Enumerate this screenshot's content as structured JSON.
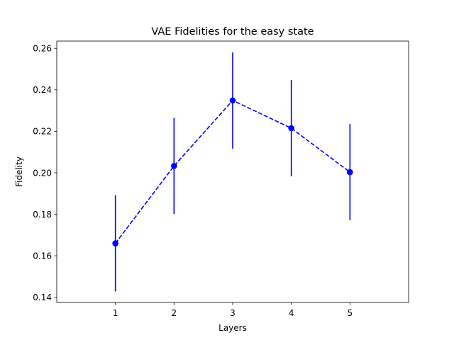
{
  "chart_data": {
    "type": "line",
    "title": "VAE Fidelities for the easy state",
    "xlabel": "Layers",
    "ylabel": "Fidelity",
    "x": [
      1,
      2,
      3,
      4,
      5
    ],
    "x_ticks": [
      "1",
      "2",
      "3",
      "4",
      "5"
    ],
    "xlim": [
      0.0,
      6.0
    ],
    "ylim": [
      0.1375,
      0.2635
    ],
    "y_ticks": [
      0.14,
      0.16,
      0.18,
      0.2,
      0.22,
      0.24,
      0.26
    ],
    "y_tick_labels": [
      "0.14",
      "0.16",
      "0.18",
      "0.20",
      "0.22",
      "0.24",
      "0.26"
    ],
    "grid": false,
    "series": [
      {
        "values": [
          0.166,
          0.2033,
          0.2349,
          0.2215,
          0.2003
        ],
        "error": [
          0.0232,
          0.0232,
          0.0232,
          0.0232,
          0.0232
        ],
        "color": "#0000ff",
        "line_style": "dashed",
        "marker": "circle"
      }
    ]
  }
}
